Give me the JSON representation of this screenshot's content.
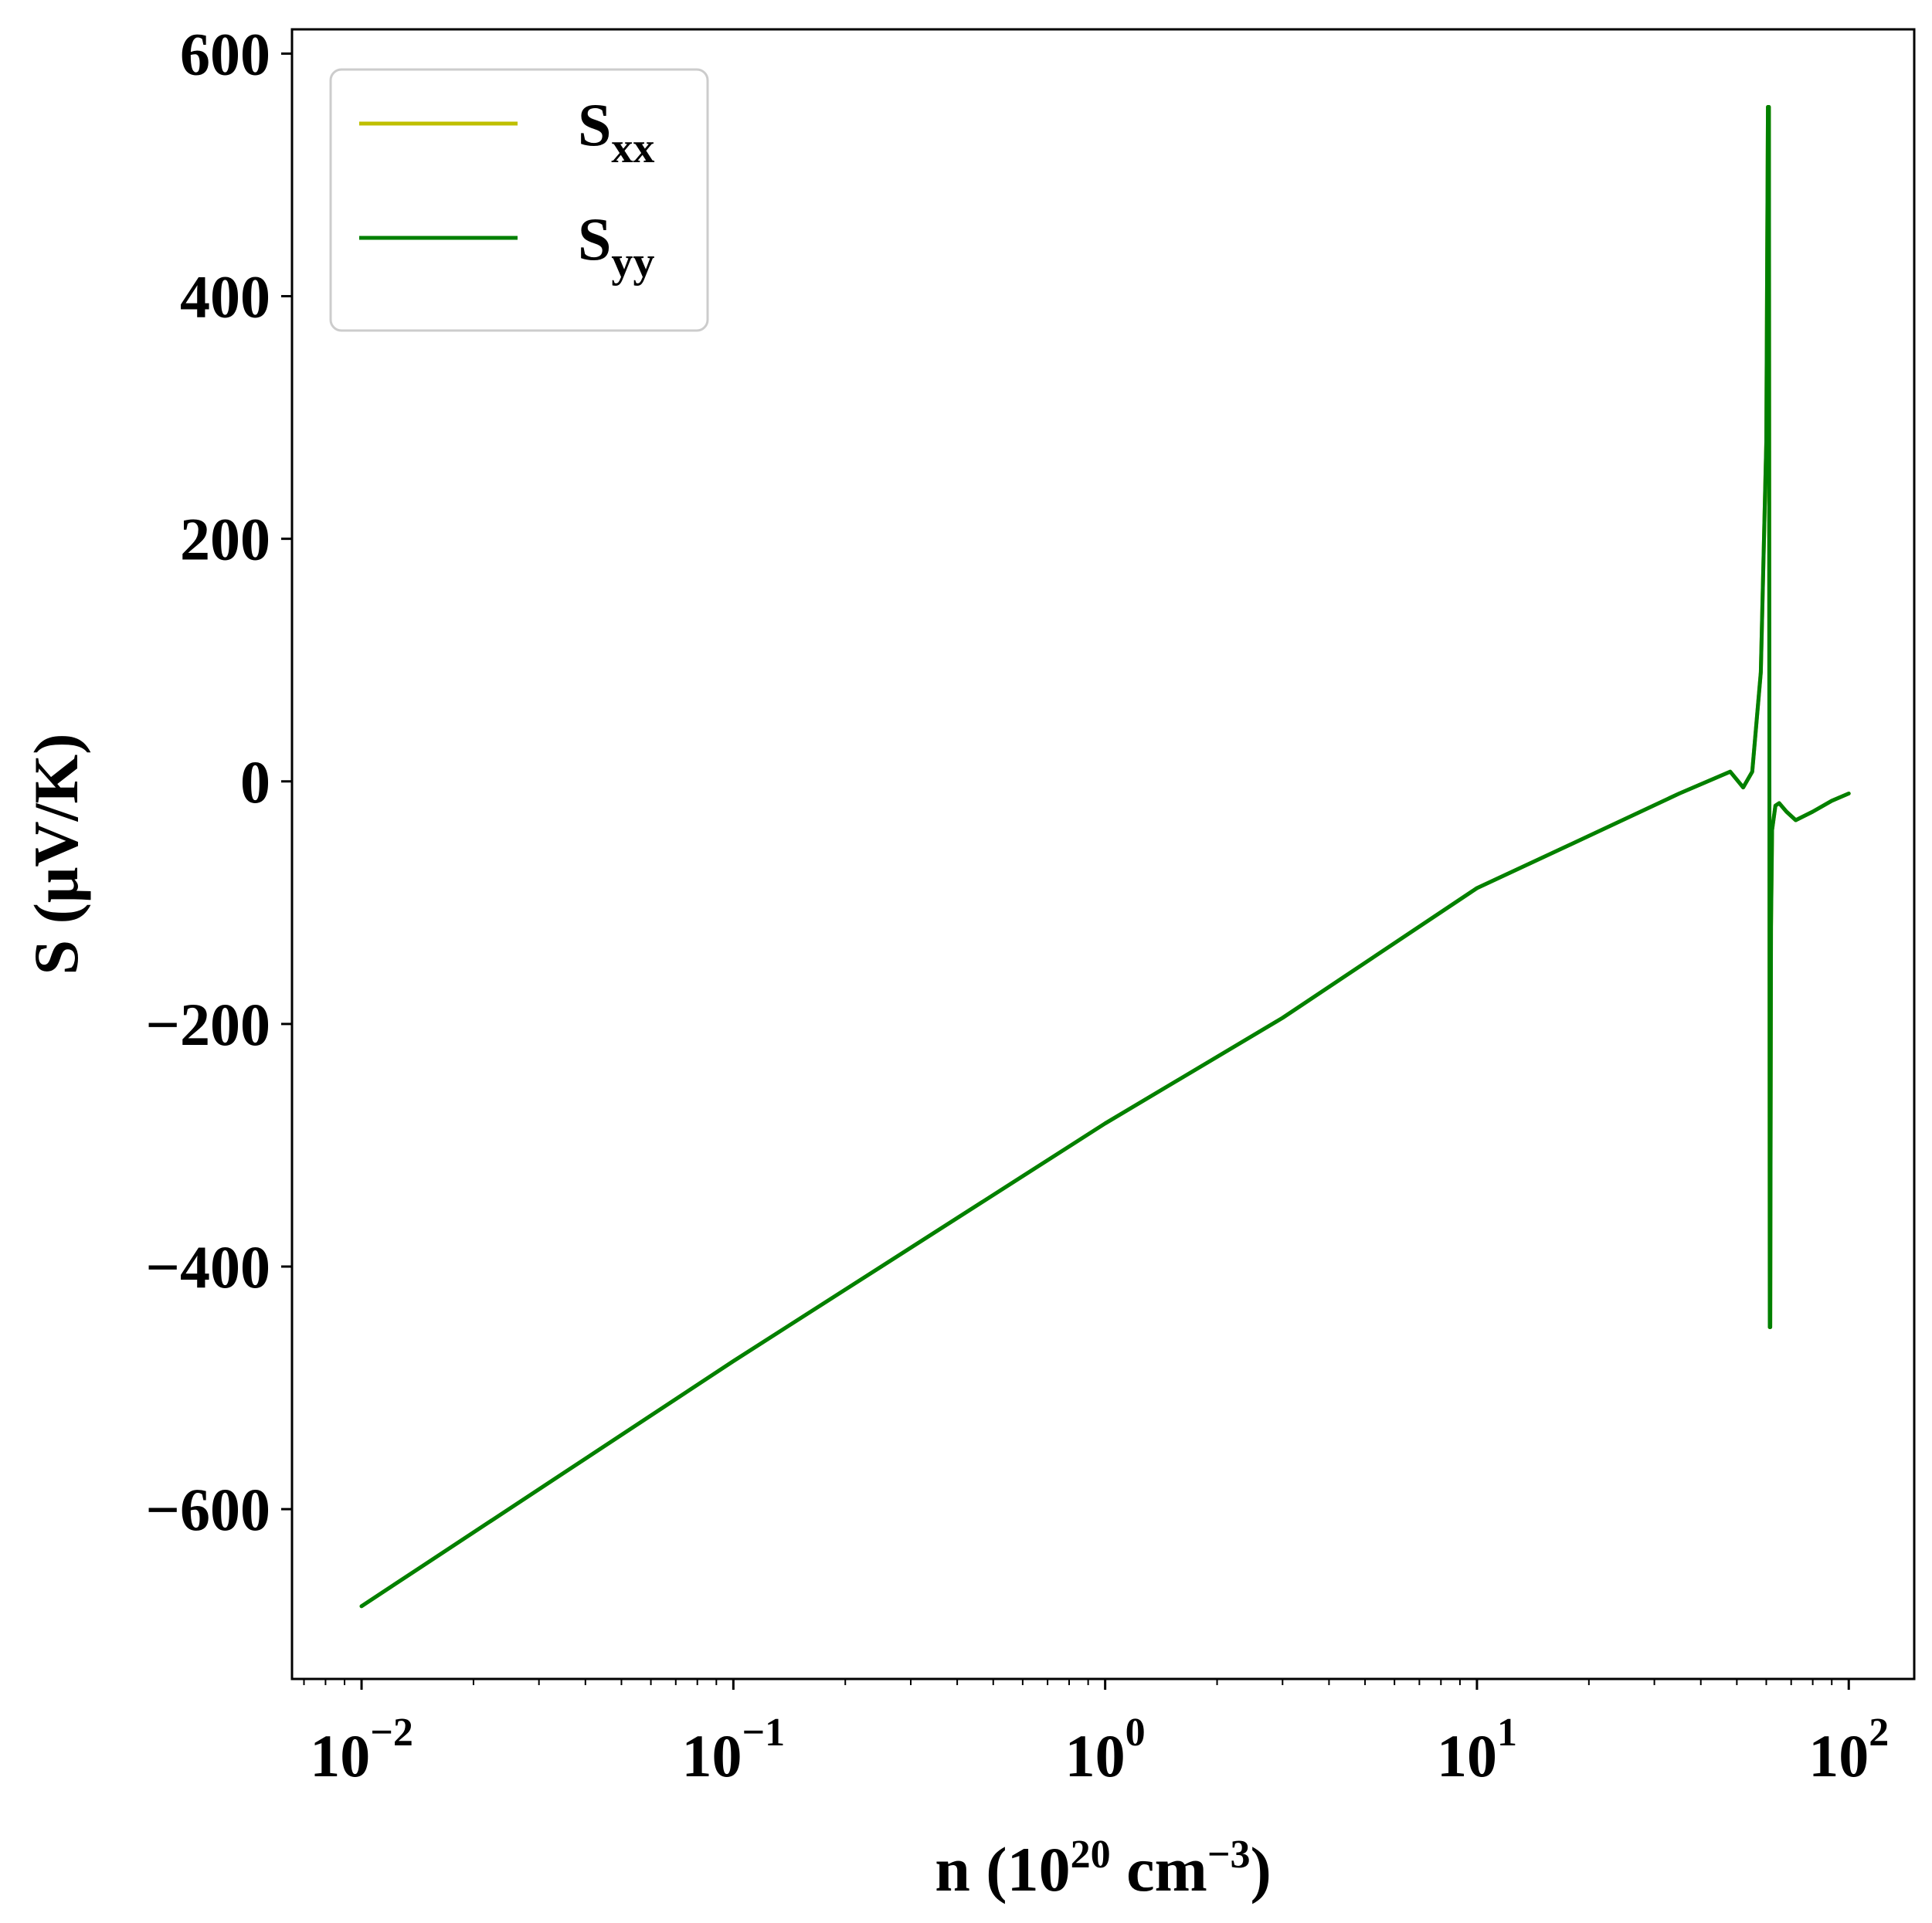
{
  "chart_data": {
    "type": "line",
    "title": "",
    "xlabel": "n (10^20 cm^-3)",
    "ylabel": "S (μV/K)",
    "xlabel_parts": {
      "pre": "n (10",
      "sup1": "20",
      "mid": " cm",
      "sup2": "−3",
      "post": ")"
    },
    "x_scale": "log",
    "xlim": [
      0.0065,
      150
    ],
    "ylim": [
      -740,
      620
    ],
    "x_ticks": [
      {
        "value": 0.01,
        "base": "10",
        "exp": "−2"
      },
      {
        "value": 0.1,
        "base": "10",
        "exp": "−1"
      },
      {
        "value": 1,
        "base": "10",
        "exp": "0"
      },
      {
        "value": 10,
        "base": "10",
        "exp": "1"
      },
      {
        "value": 100,
        "base": "10",
        "exp": "2"
      }
    ],
    "y_ticks": [
      {
        "value": 600,
        "label": "600"
      },
      {
        "value": 400,
        "label": "400"
      },
      {
        "value": 200,
        "label": "200"
      },
      {
        "value": 0,
        "label": "0"
      },
      {
        "value": -200,
        "label": "−200"
      },
      {
        "value": -400,
        "label": "−400"
      },
      {
        "value": -600,
        "label": "−600"
      }
    ],
    "grid": false,
    "legend_position": "top-left",
    "series": [
      {
        "name": "S_xx",
        "label_main": "S",
        "label_sub": "xx",
        "color": "#bfbf00",
        "x": [
          0.01,
          0.1,
          1,
          3,
          10,
          20,
          35,
          48,
          52,
          55,
          58,
          60,
          60.6,
          61,
          61.3,
          61.5,
          61.8,
          62.2,
          63.5,
          65,
          68,
          72,
          80,
          90,
          100
        ],
        "y": [
          -680,
          -478,
          -282,
          -195,
          -88,
          -45,
          -10,
          8,
          -5,
          8,
          90,
          280,
          556,
          556,
          -450,
          -450,
          -120,
          -40,
          -20,
          -18,
          -25,
          -32,
          -25,
          -16,
          -10
        ]
      },
      {
        "name": "S_yy",
        "label_main": "S",
        "label_sub": "yy",
        "color": "#008000",
        "x": [
          0.01,
          0.1,
          1,
          3,
          10,
          20,
          35,
          48,
          52,
          55,
          58,
          60,
          60.6,
          61,
          61.3,
          61.5,
          61.8,
          62.2,
          63.5,
          65,
          68,
          72,
          80,
          90,
          100
        ],
        "y": [
          -680,
          -478,
          -282,
          -195,
          -88,
          -45,
          -10,
          8,
          -5,
          8,
          90,
          280,
          556,
          556,
          -450,
          -450,
          -120,
          -40,
          -20,
          -18,
          -25,
          -32,
          -25,
          -16,
          -10
        ]
      }
    ]
  }
}
